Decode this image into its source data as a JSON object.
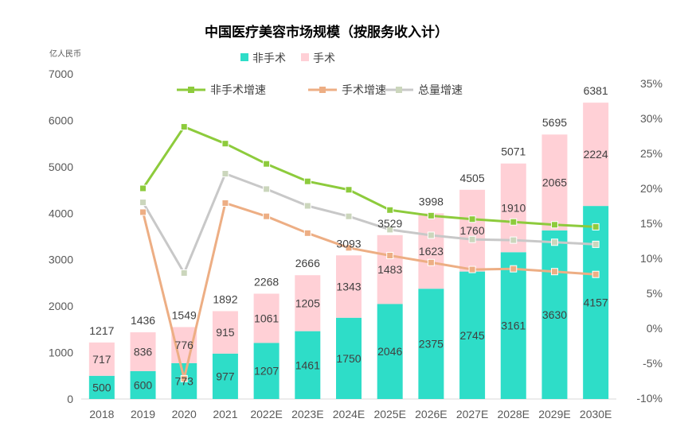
{
  "chart_data": {
    "type": "bar",
    "title": "中国医疗美容市场规模（按服务收入计）",
    "ylabel": "亿人民币",
    "ylim": [
      0,
      7000
    ],
    "yticks": [
      0,
      1000,
      2000,
      3000,
      4000,
      5000,
      6000,
      7000
    ],
    "y2lim": [
      -10,
      35
    ],
    "y2ticks": [
      "-10%",
      "-5%",
      "0%",
      "5%",
      "10%",
      "15%",
      "20%",
      "25%",
      "30%",
      "35%"
    ],
    "y2tick_values": [
      -10,
      -5,
      0,
      5,
      10,
      15,
      20,
      25,
      30,
      35
    ],
    "stacked": true,
    "grid": false,
    "legend_position": "top",
    "categories": [
      "2018",
      "2019",
      "2020",
      "2021",
      "2022E",
      "2023E",
      "2024E",
      "2025E",
      "2026E",
      "2027E",
      "2028E",
      "2029E",
      "2030E"
    ],
    "bar_series": [
      {
        "name": "非手术",
        "color": "#2EDDC8",
        "values": [
          500,
          600,
          773,
          977,
          1207,
          1461,
          1750,
          2046,
          2375,
          2745,
          3161,
          3630,
          4157
        ]
      },
      {
        "name": "手术",
        "color": "#FFD0D6",
        "values": [
          717,
          836,
          776,
          915,
          1061,
          1205,
          1343,
          1483,
          1623,
          1760,
          1910,
          2065,
          2224
        ]
      }
    ],
    "totals": [
      1217,
      1436,
      1549,
      1892,
      2268,
      2666,
      3093,
      3529,
      3998,
      4505,
      5071,
      5695,
      6381
    ],
    "line_series": [
      {
        "name": "非手术增速",
        "color": "#8DCB3C",
        "marker_color": "#8DCB3C",
        "values": [
          null,
          20.0,
          28.8,
          26.4,
          23.5,
          21.0,
          19.8,
          16.9,
          16.1,
          15.6,
          15.2,
          14.8,
          14.5
        ]
      },
      {
        "name": "手术增速",
        "color": "#EDAE84",
        "marker_color": "#EDAE84",
        "values": [
          null,
          16.6,
          -7.2,
          17.9,
          16.0,
          13.6,
          11.5,
          10.4,
          9.4,
          8.4,
          8.5,
          8.1,
          7.7
        ]
      },
      {
        "name": "总量增速",
        "color": "#C8C8C8",
        "marker_color": "#CBD6BC",
        "values": [
          null,
          18.0,
          7.9,
          22.1,
          19.9,
          17.5,
          16.0,
          14.1,
          13.3,
          12.7,
          12.6,
          12.3,
          12.0
        ]
      }
    ]
  }
}
